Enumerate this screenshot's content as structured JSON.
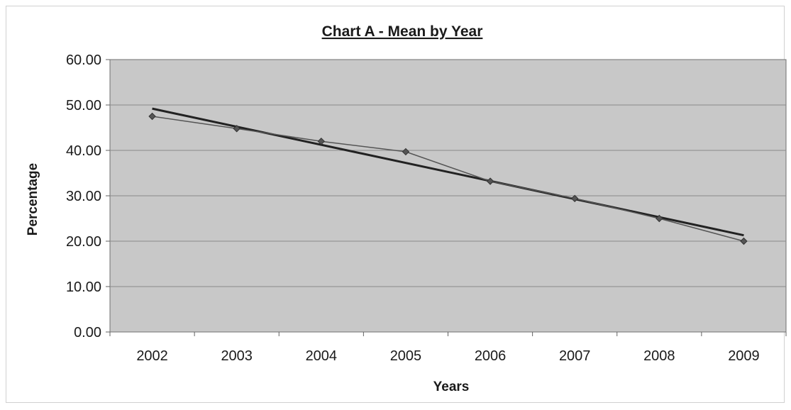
{
  "chart_data": {
    "type": "line",
    "title": "Chart A - Mean by Year",
    "xlabel": "Years",
    "ylabel": "Percentage",
    "categories": [
      "2002",
      "2003",
      "2004",
      "2005",
      "2006",
      "2007",
      "2008",
      "2009"
    ],
    "series": [
      {
        "values": [
          47.5,
          44.8,
          42.0,
          39.7,
          33.2,
          29.4,
          25.0,
          20.0
        ],
        "marker": "diamond",
        "color": "#555555"
      }
    ],
    "trendline": {
      "type": "linear",
      "start": 49.2,
      "end": 21.3,
      "color": "#222222"
    },
    "ylim": [
      0,
      60
    ],
    "yticks": [
      "0.00",
      "10.00",
      "20.00",
      "30.00",
      "40.00",
      "50.00",
      "60.00"
    ],
    "grid": true,
    "legend": "none",
    "plot_background": "#c8c8c8"
  }
}
